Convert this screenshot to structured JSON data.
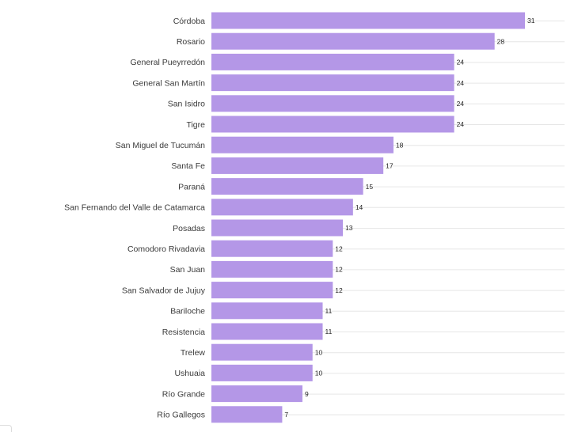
{
  "chart_data": {
    "type": "bar",
    "orientation": "horizontal",
    "title": "",
    "xlabel": "",
    "ylabel": "",
    "categories": [
      "Córdoba",
      "Rosario",
      "General Pueyrredón",
      "General San Martín",
      "San Isidro",
      "Tigre",
      "San Miguel de Tucumán",
      "Santa Fe",
      "Paraná",
      "San Fernando del Valle de Catamarca",
      "Posadas",
      "Comodoro Rivadavia",
      "San Juan",
      "San Salvador de Jujuy",
      "Bariloche",
      "Resistencia",
      "Trelew",
      "Ushuaia",
      "Río Grande",
      "Río Gallegos"
    ],
    "values": [
      31,
      28,
      24,
      24,
      24,
      24,
      18,
      17,
      15,
      14,
      13,
      12,
      12,
      12,
      11,
      11,
      10,
      10,
      9,
      7
    ],
    "xlim": [
      0,
      31
    ],
    "grid": true,
    "legend": "none",
    "bar_color": "#b497e7",
    "grid_color": "#e6e6e6"
  }
}
